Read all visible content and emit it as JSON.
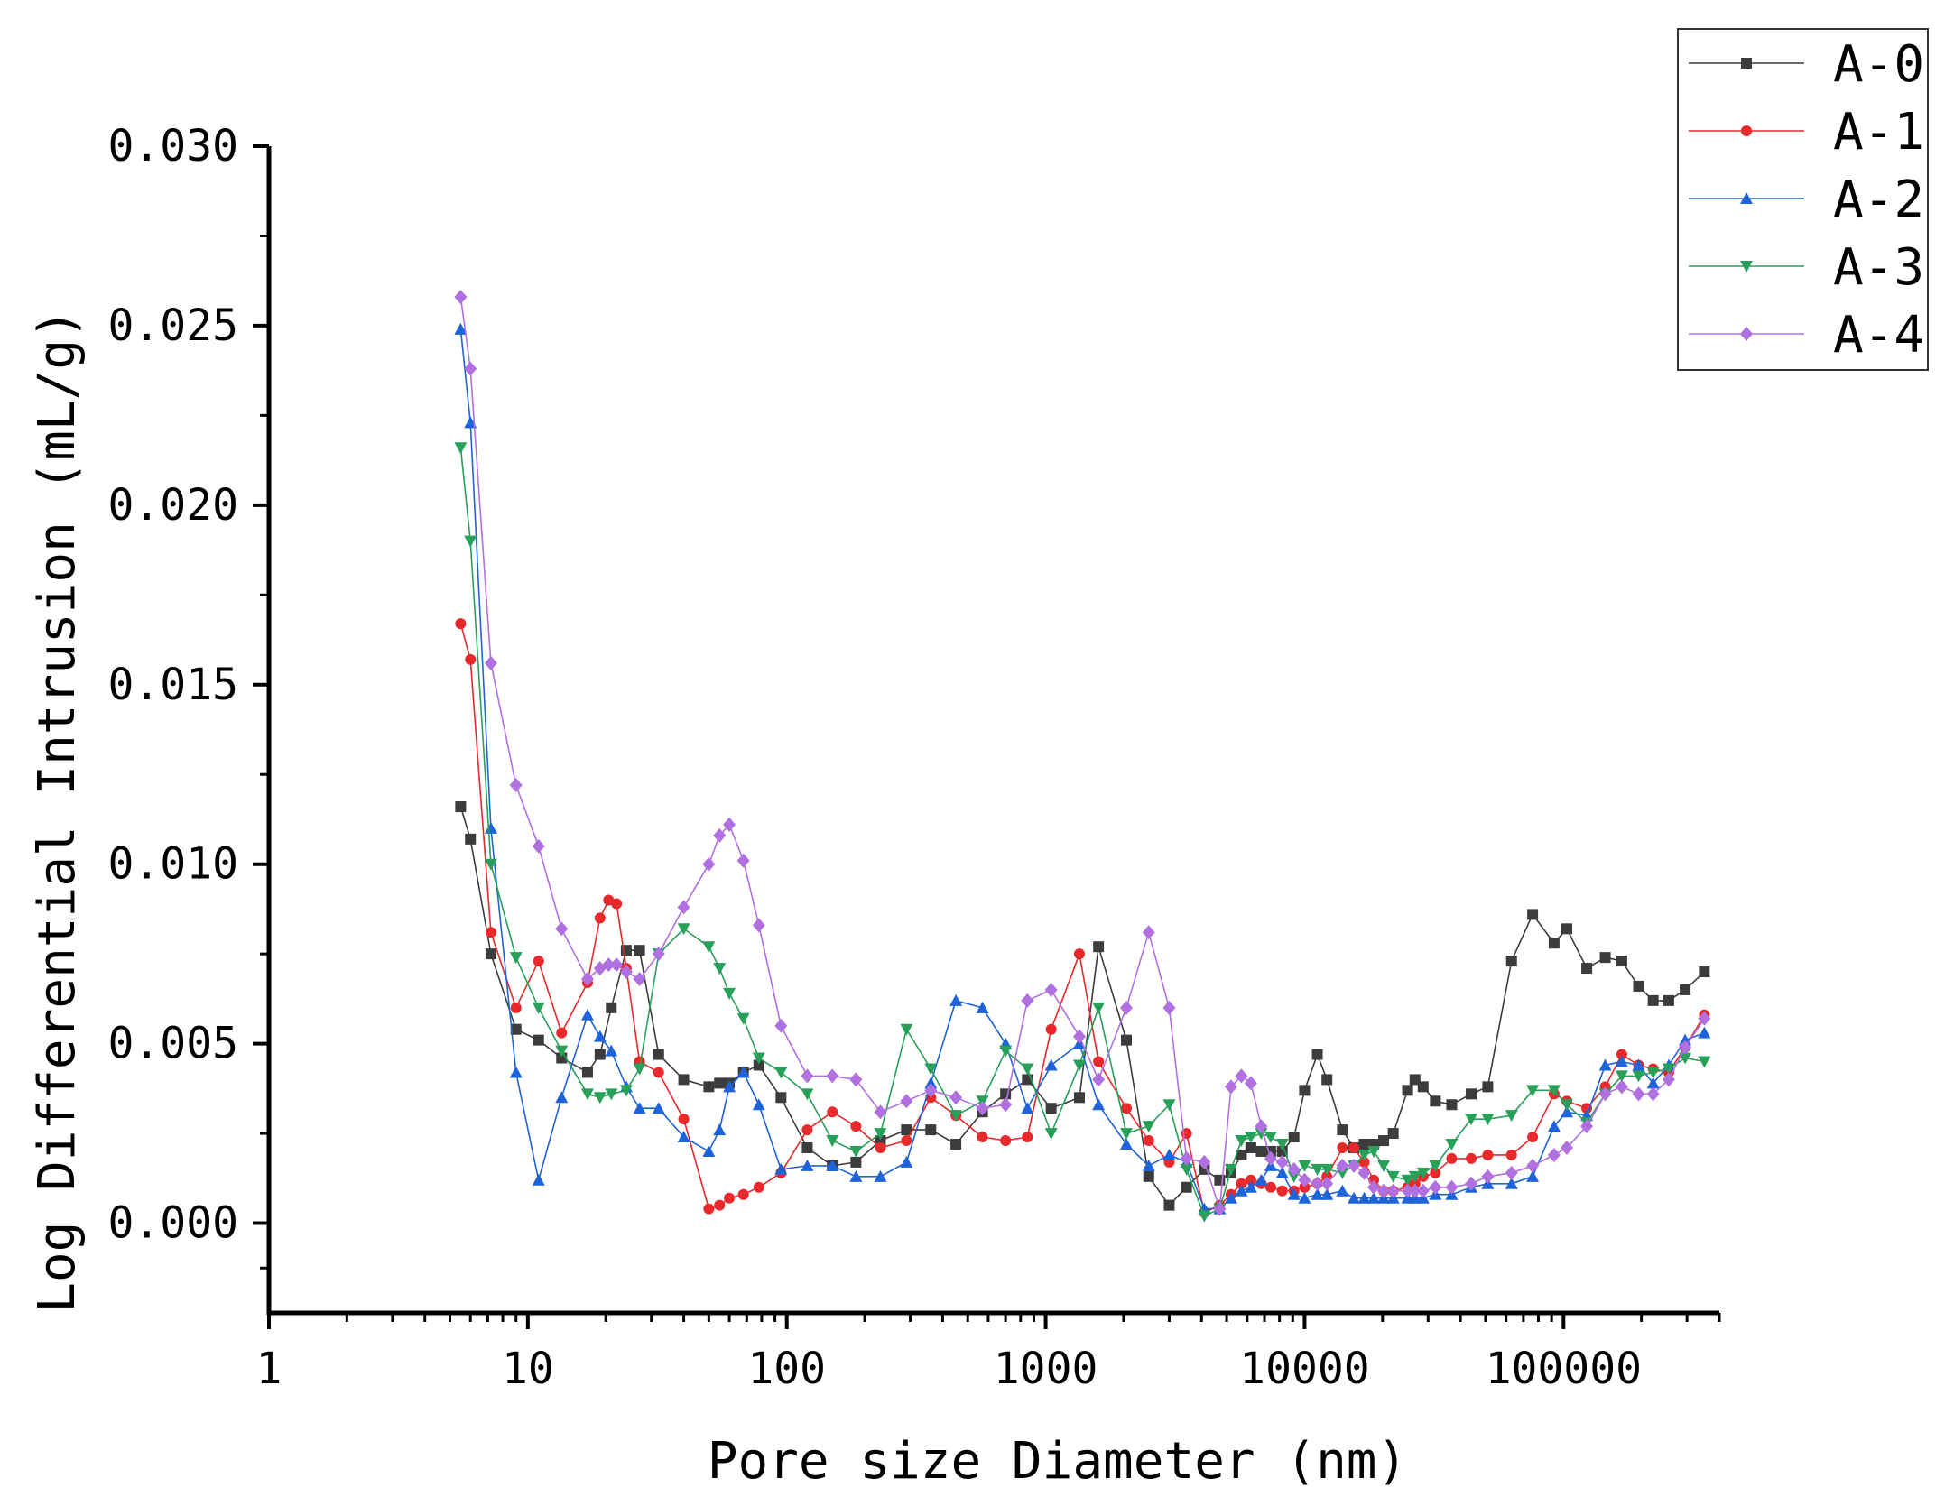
{
  "chart_data": {
    "type": "line",
    "title": "",
    "xlabel": "Pore size Diameter (nm)",
    "ylabel": "Log Differential Intrusion (mL/g)",
    "x_scale": "log",
    "xlim": [
      1,
      400000
    ],
    "ylim": [
      -0.0025,
      0.03
    ],
    "x_ticks": [
      1,
      10,
      100,
      1000,
      10000,
      100000
    ],
    "x_tick_labels": [
      "1",
      "10",
      "100",
      "1000",
      "10000",
      "100000"
    ],
    "y_ticks": [
      0.0,
      0.005,
      0.01,
      0.015,
      0.02,
      0.025,
      0.03
    ],
    "y_tick_labels": [
      "0.000",
      "0.005",
      "0.010",
      "0.015",
      "0.020",
      "0.025",
      "0.030"
    ],
    "grid": false,
    "legend_position": "top-right",
    "series": [
      {
        "name": "A-0",
        "color": "#3c3c3c",
        "marker": "square",
        "x": [
          5.5,
          6,
          7.2,
          9,
          11,
          13.5,
          17,
          19,
          21,
          24,
          27,
          32,
          40,
          50,
          55,
          60,
          68,
          78,
          95,
          120,
          150,
          185,
          230,
          290,
          360,
          450,
          570,
          700,
          850,
          1050,
          1350,
          1600,
          2050,
          2500,
          3000,
          3500,
          4100,
          4700,
          5200,
          5700,
          6200,
          6800,
          7400,
          8200,
          9100,
          10000,
          11200,
          12200,
          14000,
          15500,
          17000,
          18500,
          20200,
          22000,
          25000,
          26700,
          28700,
          32000,
          37000,
          44000,
          51000,
          63000,
          76000,
          92000,
          103000,
          123000,
          145000,
          168000,
          195000,
          222000,
          255000,
          295000,
          350000
        ],
        "y": [
          0.0116,
          0.0107,
          0.0075,
          0.0054,
          0.0051,
          0.0046,
          0.0042,
          0.0047,
          0.006,
          0.0076,
          0.0076,
          0.0047,
          0.004,
          0.0038,
          0.0039,
          0.0039,
          0.0042,
          0.0044,
          0.0035,
          0.0021,
          0.0016,
          0.0017,
          0.0023,
          0.0026,
          0.0026,
          0.0022,
          0.0031,
          0.0036,
          0.004,
          0.0032,
          0.0035,
          0.0077,
          0.0051,
          0.0013,
          0.0005,
          0.001,
          0.0015,
          0.0012,
          0.0014,
          0.0019,
          0.0021,
          0.002,
          0.002,
          0.002,
          0.0024,
          0.0037,
          0.0047,
          0.004,
          0.0026,
          0.0021,
          0.0022,
          0.0022,
          0.0023,
          0.0025,
          0.0037,
          0.004,
          0.0038,
          0.0034,
          0.0033,
          0.0036,
          0.0038,
          0.0073,
          0.0086,
          0.0078,
          0.0082,
          0.0071,
          0.0074,
          0.0073,
          0.0066,
          0.0062,
          0.0062,
          0.0065,
          0.007
        ]
      },
      {
        "name": "A-1",
        "color": "#e8282a",
        "marker": "circle",
        "x": [
          5.5,
          6,
          7.2,
          9,
          11,
          13.5,
          17,
          19,
          20.5,
          22,
          24,
          27,
          32,
          40,
          50,
          55,
          60,
          68,
          78,
          95,
          120,
          150,
          185,
          230,
          290,
          360,
          450,
          570,
          700,
          850,
          1050,
          1350,
          1600,
          2050,
          2500,
          3000,
          3500,
          4100,
          4700,
          5200,
          5700,
          6200,
          6800,
          7400,
          8200,
          9100,
          10000,
          11200,
          12200,
          14000,
          15500,
          17000,
          18500,
          20200,
          22000,
          25000,
          26700,
          28700,
          32000,
          37000,
          44000,
          51000,
          63000,
          76000,
          92000,
          103000,
          123000,
          145000,
          168000,
          195000,
          222000,
          255000,
          295000,
          350000
        ],
        "y": [
          0.0167,
          0.0157,
          0.0081,
          0.006,
          0.0073,
          0.0053,
          0.0067,
          0.0085,
          0.009,
          0.0089,
          0.0071,
          0.0045,
          0.0042,
          0.0029,
          0.0004,
          0.0005,
          0.0007,
          0.0008,
          0.001,
          0.0014,
          0.0026,
          0.0031,
          0.0027,
          0.0021,
          0.0023,
          0.0035,
          0.003,
          0.0024,
          0.0023,
          0.0024,
          0.0054,
          0.0075,
          0.0045,
          0.0032,
          0.0023,
          0.0017,
          0.0025,
          0.0003,
          0.0005,
          0.0008,
          0.0011,
          0.0012,
          0.0011,
          0.001,
          0.0009,
          0.0009,
          0.001,
          0.0011,
          0.0013,
          0.0021,
          0.0021,
          0.0017,
          0.0012,
          0.0009,
          0.0009,
          0.001,
          0.0011,
          0.0013,
          0.0014,
          0.0018,
          0.0018,
          0.0019,
          0.0019,
          0.0024,
          0.0036,
          0.0034,
          0.0032,
          0.0038,
          0.0047,
          0.0044,
          0.0043,
          0.0042,
          0.0049,
          0.0058
        ]
      },
      {
        "name": "A-2",
        "color": "#1f63d9",
        "marker": "triangle-up",
        "x": [
          5.5,
          6,
          7.2,
          9,
          11,
          13.5,
          17,
          19,
          21,
          24,
          27,
          32,
          40,
          50,
          55,
          60,
          68,
          78,
          95,
          120,
          150,
          185,
          230,
          290,
          360,
          450,
          570,
          700,
          850,
          1050,
          1350,
          1600,
          2050,
          2500,
          3000,
          3500,
          4100,
          4700,
          5200,
          5700,
          6200,
          6800,
          7400,
          8200,
          9100,
          10000,
          11200,
          12200,
          14000,
          15500,
          17000,
          18500,
          20200,
          22000,
          25000,
          26700,
          28700,
          32000,
          37000,
          44000,
          51000,
          63000,
          76000,
          92000,
          103000,
          123000,
          145000,
          168000,
          195000,
          222000,
          255000,
          295000,
          350000
        ],
        "y": [
          0.0249,
          0.0223,
          0.011,
          0.0042,
          0.0012,
          0.0035,
          0.0058,
          0.0052,
          0.0048,
          0.0038,
          0.0032,
          0.0032,
          0.0024,
          0.002,
          0.0026,
          0.0038,
          0.0042,
          0.0033,
          0.0015,
          0.0016,
          0.0016,
          0.0013,
          0.0013,
          0.0017,
          0.0039,
          0.0062,
          0.006,
          0.005,
          0.0032,
          0.0044,
          0.005,
          0.0033,
          0.0022,
          0.0016,
          0.0019,
          0.0017,
          0.0004,
          0.0004,
          0.0007,
          0.0009,
          0.001,
          0.0012,
          0.0016,
          0.0014,
          0.0008,
          0.0007,
          0.0008,
          0.0008,
          0.0009,
          0.0007,
          0.0007,
          0.0007,
          0.0007,
          0.0007,
          0.0007,
          0.0007,
          0.0007,
          0.0008,
          0.0008,
          0.001,
          0.0011,
          0.0011,
          0.0013,
          0.0027,
          0.0031,
          0.003,
          0.0044,
          0.0045,
          0.0044,
          0.0039,
          0.0044,
          0.0051,
          0.0053
        ]
      },
      {
        "name": "A-3",
        "color": "#27a05a",
        "marker": "triangle-down",
        "x": [
          5.5,
          6,
          7.2,
          9,
          11,
          13.5,
          17,
          19,
          21,
          24,
          27,
          32,
          40,
          50,
          55,
          60,
          68,
          78,
          95,
          120,
          150,
          185,
          230,
          290,
          360,
          450,
          570,
          700,
          850,
          1050,
          1350,
          1600,
          2050,
          2500,
          3000,
          3500,
          4100,
          4700,
          5200,
          5700,
          6200,
          6800,
          7400,
          8200,
          9100,
          10000,
          11200,
          12200,
          14000,
          15500,
          17000,
          18500,
          20200,
          22000,
          25000,
          26700,
          28700,
          32000,
          37000,
          44000,
          51000,
          63000,
          76000,
          92000,
          103000,
          123000,
          145000,
          168000,
          195000,
          222000,
          255000,
          295000,
          350000
        ],
        "y": [
          0.0216,
          0.019,
          0.01,
          0.0074,
          0.006,
          0.0048,
          0.0036,
          0.0035,
          0.0036,
          0.0037,
          0.0043,
          0.0075,
          0.0082,
          0.0077,
          0.0071,
          0.0064,
          0.0057,
          0.0046,
          0.0042,
          0.0036,
          0.0023,
          0.002,
          0.0025,
          0.0054,
          0.0043,
          0.003,
          0.0034,
          0.0048,
          0.0043,
          0.0025,
          0.0044,
          0.006,
          0.0025,
          0.0027,
          0.0033,
          0.0015,
          0.0002,
          0.0004,
          0.0015,
          0.0023,
          0.0024,
          0.0025,
          0.0024,
          0.0022,
          0.0013,
          0.0016,
          0.0015,
          0.0015,
          0.0014,
          0.0016,
          0.0019,
          0.002,
          0.0016,
          0.0013,
          0.0012,
          0.0013,
          0.0014,
          0.0016,
          0.0022,
          0.0029,
          0.0029,
          0.003,
          0.0037,
          0.0037,
          0.0033,
          0.0028,
          0.0036,
          0.0041,
          0.0041,
          0.0042,
          0.0043,
          0.0046,
          0.0045
        ]
      },
      {
        "name": "A-4",
        "color": "#b070e0",
        "marker": "diamond",
        "x": [
          5.5,
          6,
          7.2,
          9,
          11,
          13.5,
          17,
          19,
          20.5,
          22,
          24,
          27,
          32,
          40,
          50,
          55,
          60,
          68,
          78,
          95,
          120,
          150,
          185,
          230,
          290,
          360,
          450,
          570,
          700,
          850,
          1050,
          1350,
          1600,
          2050,
          2500,
          3000,
          3500,
          4100,
          4700,
          5200,
          5700,
          6200,
          6800,
          7400,
          8200,
          9100,
          10000,
          11200,
          12200,
          14000,
          15500,
          17000,
          18500,
          20200,
          22000,
          25000,
          26700,
          28700,
          32000,
          37000,
          44000,
          51000,
          63000,
          76000,
          92000,
          103000,
          123000,
          145000,
          168000,
          195000,
          222000,
          255000,
          295000,
          350000
        ],
        "y": [
          0.0258,
          0.0238,
          0.0156,
          0.0122,
          0.0105,
          0.0082,
          0.0068,
          0.0071,
          0.0072,
          0.0072,
          0.007,
          0.0068,
          0.0075,
          0.0088,
          0.01,
          0.0108,
          0.0111,
          0.0101,
          0.0083,
          0.0055,
          0.0041,
          0.0041,
          0.004,
          0.0031,
          0.0034,
          0.0037,
          0.0035,
          0.0032,
          0.0033,
          0.0062,
          0.0065,
          0.0052,
          0.004,
          0.006,
          0.0081,
          0.006,
          0.0018,
          0.0017,
          0.0004,
          0.0038,
          0.0041,
          0.0039,
          0.0027,
          0.0018,
          0.0017,
          0.0015,
          0.0012,
          0.0011,
          0.0011,
          0.0016,
          0.0016,
          0.0014,
          0.001,
          0.0009,
          0.0009,
          0.0009,
          0.0009,
          0.0009,
          0.001,
          0.001,
          0.0011,
          0.0013,
          0.0014,
          0.0016,
          0.0019,
          0.0021,
          0.0027,
          0.0036,
          0.0038,
          0.0036,
          0.0036,
          0.004,
          0.0049,
          0.0057
        ]
      }
    ]
  }
}
